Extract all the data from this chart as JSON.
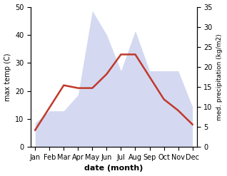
{
  "months": [
    "Jan",
    "Feb",
    "Mar",
    "Apr",
    "May",
    "Jun",
    "Jul",
    "Aug",
    "Sep",
    "Oct",
    "Nov",
    "Dec"
  ],
  "temp": [
    6,
    14,
    22,
    21,
    21,
    26,
    33,
    33,
    25,
    17,
    13,
    8
  ],
  "precip": [
    6,
    9,
    9,
    13,
    34,
    28,
    19,
    29,
    19,
    19,
    19,
    10
  ],
  "temp_color": "#c0392b",
  "precip_fill_color": "#b8c0e8",
  "left_ylim": [
    0,
    50
  ],
  "right_ylim": [
    0,
    35
  ],
  "left_yticks": [
    0,
    10,
    20,
    30,
    40,
    50
  ],
  "right_yticks": [
    0,
    5,
    10,
    15,
    20,
    25,
    30,
    35
  ],
  "xlabel": "date (month)",
  "ylabel_left": "max temp (C)",
  "ylabel_right": "med. precipitation (kg/m2)",
  "bg_color": "#ffffff",
  "line_width": 1.8
}
